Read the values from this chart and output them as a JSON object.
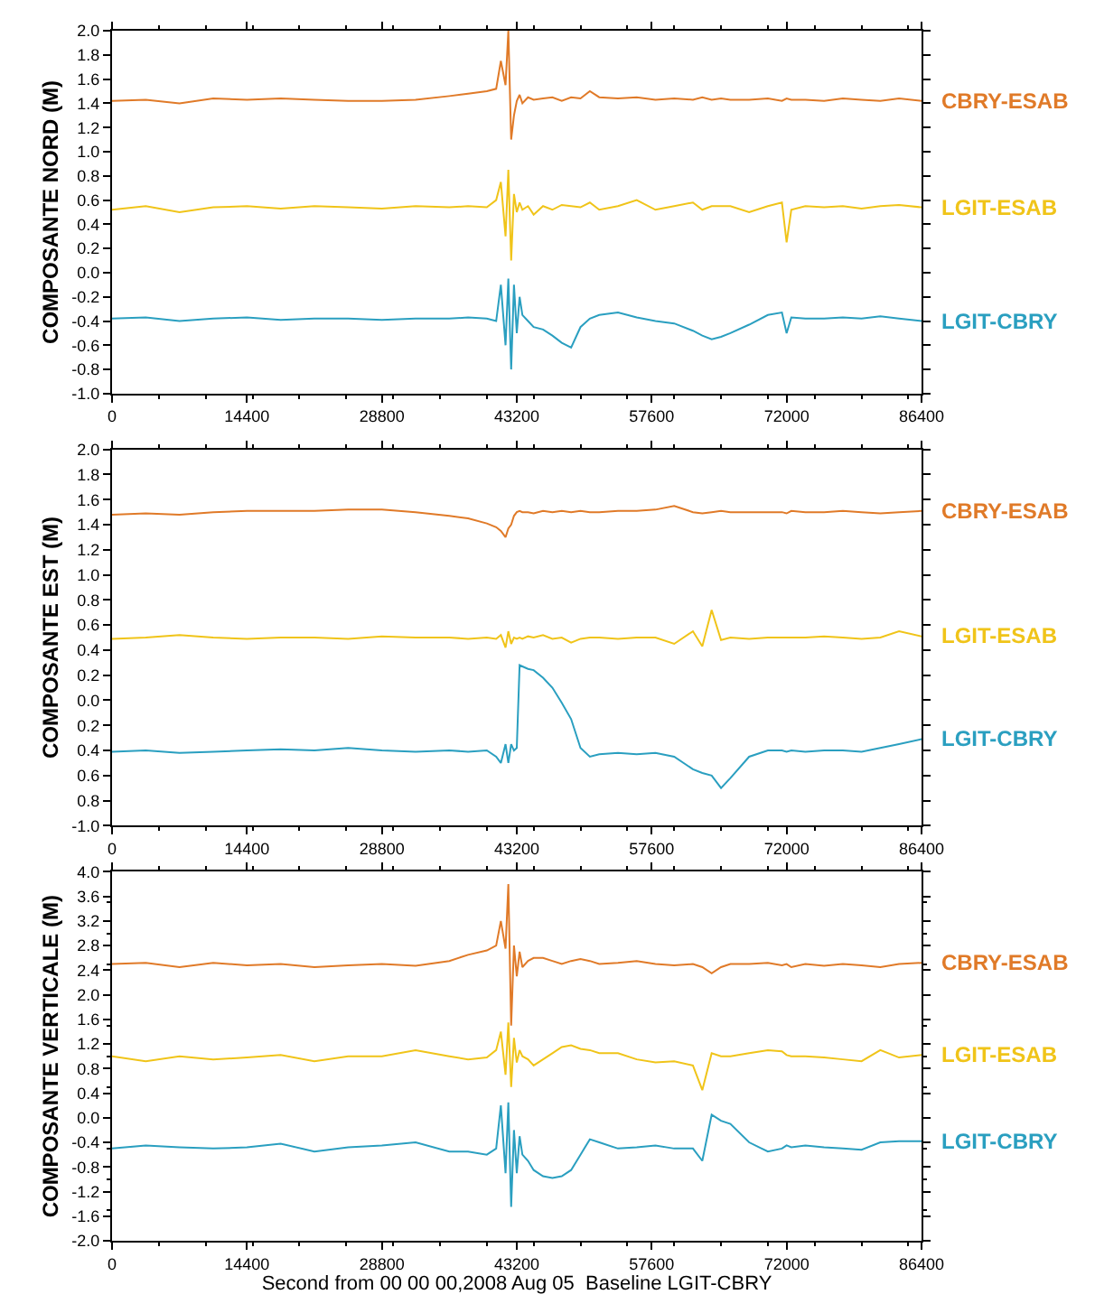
{
  "chart_data": [
    {
      "type": "line",
      "ylabel": "COMPOSANTE NORD (M)",
      "x": [
        0,
        3600,
        7200,
        10800,
        14400,
        18000,
        21600,
        25200,
        28800,
        32400,
        36000,
        38000,
        40000,
        41000,
        41500,
        42000,
        42300,
        42600,
        42900,
        43200,
        43500,
        43800,
        44400,
        45000,
        46000,
        47000,
        48000,
        49000,
        50000,
        51000,
        52000,
        54000,
        56000,
        58000,
        60000,
        62000,
        63000,
        64000,
        65000,
        66000,
        68000,
        70000,
        71500,
        72000,
        72500,
        74000,
        76000,
        78000,
        80000,
        82000,
        84000,
        86400
      ],
      "xlim": [
        0,
        86400
      ],
      "xticks": [
        0,
        14400,
        28800,
        43200,
        57600,
        72000,
        86400
      ],
      "ylim": [
        -1.0,
        2.0
      ],
      "yticks": [
        {
          "value": -1.0,
          "label": "-1.0"
        },
        -0.8,
        -0.6,
        -0.4,
        -0.2,
        {
          "value": 0,
          "label": "0.0"
        },
        0.2,
        0.4,
        0.6,
        0.8,
        {
          "value": 1.0,
          "label": "1.0"
        },
        1.2,
        1.4,
        1.6,
        1.8,
        {
          "value": 2.0,
          "label": "2.0"
        }
      ],
      "legend": false,
      "marker": "none",
      "line_style": "solid",
      "series": [
        {
          "name": "CBRY-ESAB",
          "color": "#e07a28",
          "values": [
            1.42,
            1.43,
            1.4,
            1.44,
            1.43,
            1.44,
            1.43,
            1.42,
            1.42,
            1.43,
            1.46,
            1.48,
            1.5,
            1.52,
            1.75,
            1.55,
            2.0,
            1.1,
            1.3,
            1.42,
            1.47,
            1.4,
            1.45,
            1.43,
            1.44,
            1.45,
            1.42,
            1.45,
            1.44,
            1.5,
            1.45,
            1.44,
            1.45,
            1.43,
            1.44,
            1.43,
            1.45,
            1.43,
            1.44,
            1.43,
            1.43,
            1.44,
            1.42,
            1.44,
            1.43,
            1.43,
            1.42,
            1.44,
            1.43,
            1.42,
            1.44,
            1.42
          ]
        },
        {
          "name": "LGIT-ESAB",
          "color": "#f0c419",
          "values": [
            0.52,
            0.55,
            0.5,
            0.54,
            0.55,
            0.53,
            0.55,
            0.54,
            0.53,
            0.55,
            0.54,
            0.55,
            0.54,
            0.6,
            0.75,
            0.3,
            0.85,
            0.1,
            0.65,
            0.5,
            0.58,
            0.52,
            0.55,
            0.48,
            0.55,
            0.52,
            0.56,
            0.55,
            0.54,
            0.58,
            0.52,
            0.55,
            0.6,
            0.52,
            0.55,
            0.58,
            0.52,
            0.55,
            0.55,
            0.55,
            0.5,
            0.55,
            0.58,
            0.25,
            0.52,
            0.55,
            0.54,
            0.55,
            0.53,
            0.55,
            0.56,
            0.54
          ]
        },
        {
          "name": "LGIT-CBRY",
          "color": "#2a9fc0",
          "values": [
            -0.38,
            -0.37,
            -0.4,
            -0.38,
            -0.37,
            -0.39,
            -0.38,
            -0.38,
            -0.39,
            -0.38,
            -0.38,
            -0.37,
            -0.38,
            -0.4,
            -0.1,
            -0.6,
            -0.05,
            -0.8,
            -0.1,
            -0.5,
            -0.2,
            -0.35,
            -0.4,
            -0.45,
            -0.47,
            -0.52,
            -0.58,
            -0.62,
            -0.45,
            -0.38,
            -0.35,
            -0.33,
            -0.37,
            -0.4,
            -0.42,
            -0.48,
            -0.52,
            -0.55,
            -0.53,
            -0.5,
            -0.43,
            -0.35,
            -0.33,
            -0.5,
            -0.37,
            -0.38,
            -0.38,
            -0.37,
            -0.38,
            -0.36,
            -0.38,
            -0.4
          ]
        }
      ]
    },
    {
      "type": "line",
      "ylabel": "COMPOSANTE EST (M)",
      "x": [
        0,
        3600,
        7200,
        10800,
        14400,
        18000,
        21600,
        25200,
        28800,
        32400,
        36000,
        38000,
        40000,
        41000,
        41500,
        42000,
        42300,
        42600,
        42900,
        43200,
        43500,
        43800,
        44400,
        45000,
        46000,
        47000,
        48000,
        49000,
        50000,
        51000,
        52000,
        54000,
        56000,
        58000,
        60000,
        62000,
        63000,
        64000,
        65000,
        66000,
        68000,
        70000,
        71500,
        72000,
        72500,
        74000,
        76000,
        78000,
        80000,
        82000,
        84000,
        86400
      ],
      "xlim": [
        0,
        86400
      ],
      "xticks": [
        0,
        14400,
        28800,
        43200,
        57600,
        72000,
        86400
      ],
      "ylim": [
        -1.0,
        2.0
      ],
      "yticks": [
        {
          "value": -1.0,
          "label": "-1.0"
        },
        {
          "value": -0.8,
          "label": "0.8"
        },
        {
          "value": -0.6,
          "label": "0.6"
        },
        {
          "value": -0.4,
          "label": "0.4"
        },
        {
          "value": -0.2,
          "label": "0.2"
        },
        {
          "value": 0,
          "label": "0.0"
        },
        0.2,
        0.4,
        0.6,
        0.8,
        {
          "value": 1.0,
          "label": "1.0"
        },
        1.2,
        1.4,
        1.6,
        1.8,
        {
          "value": 2.0,
          "label": "2.0"
        }
      ],
      "legend": false,
      "marker": "none",
      "line_style": "solid",
      "series": [
        {
          "name": "CBRY-ESAB",
          "color": "#e07a28",
          "values": [
            1.48,
            1.49,
            1.48,
            1.5,
            1.51,
            1.51,
            1.51,
            1.52,
            1.52,
            1.5,
            1.47,
            1.45,
            1.41,
            1.38,
            1.35,
            1.3,
            1.37,
            1.4,
            1.47,
            1.5,
            1.51,
            1.5,
            1.5,
            1.49,
            1.51,
            1.5,
            1.51,
            1.5,
            1.51,
            1.5,
            1.5,
            1.51,
            1.51,
            1.52,
            1.55,
            1.5,
            1.49,
            1.5,
            1.51,
            1.5,
            1.5,
            1.5,
            1.5,
            1.49,
            1.51,
            1.5,
            1.5,
            1.51,
            1.5,
            1.49,
            1.5,
            1.51
          ]
        },
        {
          "name": "LGIT-ESAB",
          "color": "#f0c419",
          "values": [
            0.49,
            0.5,
            0.52,
            0.5,
            0.49,
            0.5,
            0.5,
            0.49,
            0.51,
            0.5,
            0.5,
            0.49,
            0.5,
            0.49,
            0.52,
            0.42,
            0.55,
            0.45,
            0.5,
            0.49,
            0.5,
            0.49,
            0.51,
            0.5,
            0.52,
            0.49,
            0.5,
            0.46,
            0.49,
            0.5,
            0.5,
            0.49,
            0.5,
            0.5,
            0.45,
            0.55,
            0.43,
            0.72,
            0.48,
            0.5,
            0.49,
            0.5,
            0.5,
            0.5,
            0.5,
            0.5,
            0.51,
            0.5,
            0.49,
            0.5,
            0.55,
            0.51
          ]
        },
        {
          "name": "LGIT-CBRY",
          "color": "#2a9fc0",
          "values": [
            -0.41,
            -0.4,
            -0.42,
            -0.41,
            -0.4,
            -0.39,
            -0.4,
            -0.38,
            -0.4,
            -0.41,
            -0.4,
            -0.41,
            -0.4,
            -0.45,
            -0.5,
            -0.35,
            -0.5,
            -0.35,
            -0.4,
            -0.38,
            0.28,
            0.27,
            0.25,
            0.24,
            0.18,
            0.1,
            -0.02,
            -0.15,
            -0.38,
            -0.45,
            -0.43,
            -0.42,
            -0.43,
            -0.42,
            -0.45,
            -0.55,
            -0.58,
            -0.6,
            -0.7,
            -0.62,
            -0.45,
            -0.4,
            -0.4,
            -0.41,
            -0.4,
            -0.41,
            -0.4,
            -0.4,
            -0.41,
            -0.38,
            -0.35,
            -0.31
          ]
        }
      ]
    },
    {
      "type": "line",
      "ylabel": "COMPOSANTE VERTICALE (M)",
      "xlabel": "Second from 00 00 00,2008 Aug 05  Baseline LGIT-CBRY",
      "x": [
        0,
        3600,
        7200,
        10800,
        14400,
        18000,
        21600,
        25200,
        28800,
        32400,
        36000,
        38000,
        40000,
        41000,
        41500,
        42000,
        42300,
        42600,
        42900,
        43200,
        43500,
        43800,
        44400,
        45000,
        46000,
        47000,
        48000,
        49000,
        50000,
        51000,
        52000,
        54000,
        56000,
        58000,
        60000,
        62000,
        63000,
        64000,
        65000,
        66000,
        68000,
        70000,
        71500,
        72000,
        72500,
        74000,
        76000,
        78000,
        80000,
        82000,
        84000,
        86400
      ],
      "xlim": [
        0,
        86400
      ],
      "xticks": [
        0,
        14400,
        28800,
        43200,
        57600,
        72000,
        86400
      ],
      "ylim": [
        -2.0,
        4.0
      ],
      "yticks": [
        {
          "value": -2.0,
          "label": "-2.0"
        },
        -1.6,
        -1.2,
        -0.8,
        -0.4,
        {
          "value": 0,
          "label": "0.0"
        },
        0.4,
        0.8,
        1.2,
        1.6,
        {
          "value": 2.0,
          "label": "2.0"
        },
        2.4,
        2.8,
        3.2,
        3.6,
        {
          "value": 4.0,
          "label": "4.0"
        }
      ],
      "legend": false,
      "marker": "none",
      "line_style": "solid",
      "series": [
        {
          "name": "CBRY-ESAB",
          "color": "#e07a28",
          "values": [
            2.5,
            2.52,
            2.45,
            2.52,
            2.48,
            2.5,
            2.45,
            2.48,
            2.5,
            2.47,
            2.55,
            2.65,
            2.72,
            2.8,
            3.2,
            2.75,
            3.8,
            1.5,
            2.8,
            2.3,
            2.7,
            2.45,
            2.55,
            2.6,
            2.6,
            2.55,
            2.5,
            2.55,
            2.58,
            2.55,
            2.5,
            2.52,
            2.55,
            2.5,
            2.48,
            2.5,
            2.45,
            2.35,
            2.45,
            2.5,
            2.5,
            2.52,
            2.48,
            2.5,
            2.45,
            2.5,
            2.47,
            2.5,
            2.48,
            2.45,
            2.5,
            2.52
          ]
        },
        {
          "name": "LGIT-ESAB",
          "color": "#f0c419",
          "values": [
            1.0,
            0.92,
            1.0,
            0.95,
            0.98,
            1.02,
            0.92,
            1.0,
            1.0,
            1.1,
            1.0,
            0.95,
            0.98,
            1.1,
            1.4,
            0.7,
            1.55,
            0.5,
            1.3,
            0.9,
            1.1,
            1.0,
            0.95,
            0.85,
            0.95,
            1.05,
            1.15,
            1.18,
            1.12,
            1.1,
            1.05,
            1.05,
            0.95,
            0.9,
            0.92,
            0.85,
            0.45,
            1.05,
            1.0,
            1.0,
            1.05,
            1.1,
            1.08,
            1.02,
            1.0,
            1.0,
            0.98,
            0.95,
            0.92,
            1.1,
            0.98,
            1.02
          ]
        },
        {
          "name": "LGIT-CBRY",
          "color": "#2a9fc0",
          "values": [
            -0.5,
            -0.45,
            -0.48,
            -0.5,
            -0.48,
            -0.42,
            -0.55,
            -0.48,
            -0.45,
            -0.4,
            -0.55,
            -0.55,
            -0.6,
            -0.5,
            0.2,
            -0.9,
            0.25,
            -1.45,
            -0.2,
            -0.9,
            -0.3,
            -0.6,
            -0.7,
            -0.85,
            -0.95,
            -0.98,
            -0.95,
            -0.85,
            -0.6,
            -0.35,
            -0.4,
            -0.5,
            -0.48,
            -0.45,
            -0.5,
            -0.5,
            -0.7,
            0.05,
            -0.05,
            -0.1,
            -0.4,
            -0.55,
            -0.5,
            -0.45,
            -0.48,
            -0.45,
            -0.48,
            -0.5,
            -0.52,
            -0.4,
            -0.38,
            -0.38
          ]
        }
      ]
    }
  ]
}
